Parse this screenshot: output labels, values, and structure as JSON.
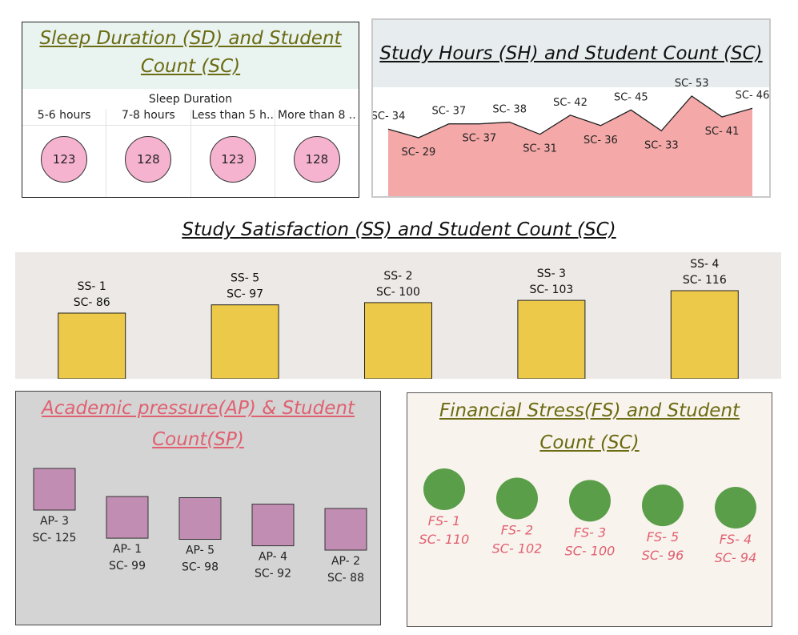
{
  "sleep": {
    "title_line1": "Sleep  Duration (SD) and Student",
    "title_line2": "Count (SC)",
    "dimension_label": "Sleep Duration",
    "colors": {
      "circle": "#f6b3cf",
      "title": "#6b6b12"
    }
  },
  "study_hours": {
    "title": "Study Hours (SH) and Student Count (SC)",
    "colors": {
      "area": "#f4a8a8",
      "line": "#222222"
    }
  },
  "satisfaction": {
    "title": "Study Satisfaction (SS) and Student Count (SC)",
    "colors": {
      "bar": "#ecc948"
    }
  },
  "academic": {
    "title_line1": "Academic pressure(AP) & Student",
    "title_line2": "Count(SP)",
    "colors": {
      "square": "#c28db3",
      "title": "#e06070"
    }
  },
  "financial": {
    "title_line1": "Financial Stress(FS)  and Student",
    "title_line2": "Count (SC)",
    "colors": {
      "circle": "#5b9e4a",
      "label": "#e06070",
      "title": "#6b6b12"
    }
  },
  "chart_data": [
    {
      "type": "table",
      "title": "Sleep  Duration (SD) and Student Count (SC)",
      "categories": [
        "5-6 hours",
        "7-8 hours",
        "Less than 5 h..",
        "More than 8 .."
      ],
      "values": [
        123,
        128,
        123,
        128
      ]
    },
    {
      "type": "area",
      "title": "Study Hours (SH) and Student Count (SC)",
      "labels": [
        "SC- 34",
        "SC- 29",
        "SC- 37",
        "SC- 37",
        "SC- 38",
        "SC- 31",
        "SC- 42",
        "SC- 36",
        "SC- 45",
        "SC- 33",
        "SC- 53",
        "SC- 41",
        "SC- 46"
      ],
      "values": [
        34,
        29,
        37,
        37,
        38,
        31,
        42,
        36,
        45,
        33,
        53,
        41,
        46
      ]
    },
    {
      "type": "bar",
      "title": "Study Satisfaction (SS) and Student Count (SC)",
      "categories": [
        "SS- 1",
        "SS- 5",
        "SS- 2",
        "SS- 3",
        "SS- 4"
      ],
      "values": [
        86,
        97,
        100,
        103,
        116
      ],
      "value_labels": [
        "SC- 86",
        "SC- 97",
        "SC- 100",
        "SC- 103",
        "SC- 116"
      ]
    },
    {
      "type": "scatter",
      "title": "Academic pressure(AP) & Student Count(SP)",
      "categories": [
        "AP- 3",
        "AP- 1",
        "AP- 5",
        "AP- 4",
        "AP- 2"
      ],
      "values": [
        125,
        99,
        98,
        92,
        88
      ],
      "value_labels": [
        "SC- 125",
        "SC- 99",
        "SC- 98",
        "SC- 92",
        "SC- 88"
      ]
    },
    {
      "type": "scatter",
      "title": "Financial Stress(FS)  and Student Count (SC)",
      "categories": [
        "FS- 1",
        "FS- 2",
        "FS- 3",
        "FS- 5",
        "FS- 4"
      ],
      "values": [
        110,
        102,
        100,
        96,
        94
      ],
      "value_labels": [
        "SC- 110",
        "SC- 102",
        "SC- 100",
        "SC- 96",
        "SC- 94"
      ]
    }
  ]
}
